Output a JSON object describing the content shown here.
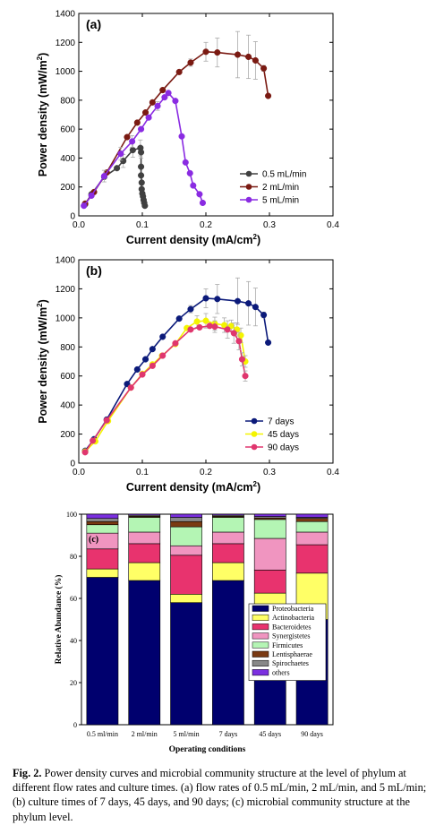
{
  "chart_data": [
    {
      "type": "line",
      "panel_label": "(a)",
      "title": "",
      "xlabel": "Current density (mA/cm",
      "xlabel_sup": "2",
      "xlabel_end": ")",
      "ylabel": "Power density (mW/m",
      "ylabel_sup": "2",
      "ylabel_end": ")",
      "xlim": [
        0,
        0.4
      ],
      "ylim": [
        0,
        1400
      ],
      "xticks": [
        "0.0",
        "0.1",
        "0.2",
        "0.3",
        "0.4"
      ],
      "yticks": [
        "0",
        "200",
        "400",
        "600",
        "800",
        "1000",
        "1200",
        "1400"
      ],
      "legend_position": "bottom-right",
      "series": [
        {
          "name": "0.5 mL/min",
          "color": "#404040",
          "points": [
            [
              0.01,
              80
            ],
            [
              0.02,
              150
            ],
            [
              0.04,
              270
            ],
            [
              0.06,
              330
            ],
            [
              0.07,
              380
            ],
            [
              0.085,
              455
            ],
            [
              0.097,
              470
            ],
            [
              0.098,
              440
            ],
            [
              0.098,
              340
            ],
            [
              0.098,
              280
            ],
            [
              0.099,
              230
            ],
            [
              0.099,
              185
            ],
            [
              0.1,
              155
            ],
            [
              0.101,
              135
            ],
            [
              0.102,
              110
            ],
            [
              0.103,
              90
            ],
            [
              0.104,
              70
            ]
          ],
          "errors": [
            0,
            0,
            0,
            0,
            45,
            50,
            55,
            40,
            0,
            0,
            0,
            0,
            0,
            0,
            0,
            0,
            0
          ]
        },
        {
          "name": "2 mL/min",
          "color": "#7a1a12",
          "points": [
            [
              0.01,
              85
            ],
            [
              0.024,
              165
            ],
            [
              0.044,
              300
            ],
            [
              0.076,
              545
            ],
            [
              0.092,
              645
            ],
            [
              0.105,
              715
            ],
            [
              0.116,
              785
            ],
            [
              0.132,
              870
            ],
            [
              0.158,
              995
            ],
            [
              0.176,
              1060
            ],
            [
              0.2,
              1135
            ],
            [
              0.218,
              1130
            ],
            [
              0.25,
              1115
            ],
            [
              0.267,
              1100
            ],
            [
              0.278,
              1075
            ],
            [
              0.291,
              1020
            ],
            [
              0.298,
              830
            ]
          ],
          "errors": [
            0,
            0,
            0,
            0,
            0,
            0,
            0,
            0,
            0,
            25,
            65,
            100,
            160,
            150,
            130,
            20,
            0
          ]
        },
        {
          "name": "5 mL/min",
          "color": "#8a2be2",
          "points": [
            [
              0.008,
              70
            ],
            [
              0.02,
              140
            ],
            [
              0.04,
              275
            ],
            [
              0.066,
              430
            ],
            [
              0.084,
              515
            ],
            [
              0.098,
              600
            ],
            [
              0.11,
              680
            ],
            [
              0.124,
              760
            ],
            [
              0.135,
              820
            ],
            [
              0.141,
              850
            ],
            [
              0.152,
              795
            ],
            [
              0.162,
              550
            ],
            [
              0.168,
              370
            ],
            [
              0.175,
              295
            ],
            [
              0.18,
              210
            ],
            [
              0.19,
              150
            ],
            [
              0.195,
              90
            ]
          ],
          "errors": [
            0,
            0,
            40,
            45,
            40,
            0,
            0,
            30,
            0,
            0,
            0,
            0,
            0,
            0,
            0,
            0,
            0
          ]
        }
      ]
    },
    {
      "type": "line",
      "panel_label": "(b)",
      "title": "",
      "xlabel": "Current density (mA/cm",
      "xlabel_sup": "2",
      "xlabel_end": ")",
      "ylabel": "Power density (mW/m",
      "ylabel_sup": "2",
      "ylabel_end": ")",
      "xlim": [
        0,
        0.4
      ],
      "ylim": [
        0,
        1400
      ],
      "xticks": [
        "0.0",
        "0.1",
        "0.2",
        "0.3",
        "0.4"
      ],
      "yticks": [
        "0",
        "200",
        "400",
        "600",
        "800",
        "1000",
        "1200",
        "1400"
      ],
      "legend_position": "bottom-right",
      "series": [
        {
          "name": "7 days",
          "color": "#0b1a7a",
          "points": [
            [
              0.01,
              85
            ],
            [
              0.024,
              165
            ],
            [
              0.044,
              300
            ],
            [
              0.076,
              545
            ],
            [
              0.092,
              645
            ],
            [
              0.105,
              715
            ],
            [
              0.116,
              785
            ],
            [
              0.132,
              870
            ],
            [
              0.158,
              995
            ],
            [
              0.176,
              1060
            ],
            [
              0.2,
              1135
            ],
            [
              0.218,
              1130
            ],
            [
              0.25,
              1115
            ],
            [
              0.267,
              1100
            ],
            [
              0.278,
              1075
            ],
            [
              0.291,
              1020
            ],
            [
              0.298,
              830
            ]
          ],
          "errors": [
            0,
            0,
            0,
            0,
            0,
            0,
            0,
            0,
            0,
            25,
            65,
            100,
            160,
            150,
            130,
            20,
            0
          ]
        },
        {
          "name": "45 days",
          "color": "#f4f400",
          "points": [
            [
              0.01,
              80
            ],
            [
              0.026,
              150
            ],
            [
              0.046,
              290
            ],
            [
              0.082,
              520
            ],
            [
              0.1,
              615
            ],
            [
              0.116,
              680
            ],
            [
              0.131,
              740
            ],
            [
              0.152,
              820
            ],
            [
              0.17,
              930
            ],
            [
              0.186,
              975
            ],
            [
              0.2,
              980
            ],
            [
              0.214,
              960
            ],
            [
              0.229,
              950
            ],
            [
              0.24,
              945
            ],
            [
              0.249,
              920
            ],
            [
              0.255,
              880
            ],
            [
              0.262,
              700
            ]
          ],
          "errors": [
            0,
            0,
            0,
            0,
            0,
            0,
            0,
            0,
            0,
            40,
            50,
            45,
            50,
            40,
            45,
            50,
            40
          ]
        },
        {
          "name": "90 days",
          "color": "#e0366e",
          "points": [
            [
              0.01,
              75
            ],
            [
              0.022,
              155
            ],
            [
              0.044,
              295
            ],
            [
              0.082,
              520
            ],
            [
              0.1,
              610
            ],
            [
              0.116,
              670
            ],
            [
              0.132,
              740
            ],
            [
              0.152,
              825
            ],
            [
              0.176,
              920
            ],
            [
              0.19,
              935
            ],
            [
              0.206,
              945
            ],
            [
              0.214,
              940
            ],
            [
              0.234,
              920
            ],
            [
              0.244,
              895
            ],
            [
              0.252,
              840
            ],
            [
              0.257,
              715
            ],
            [
              0.262,
              600
            ]
          ],
          "errors": [
            0,
            0,
            0,
            0,
            0,
            0,
            0,
            0,
            0,
            0,
            0,
            40,
            60,
            70,
            60,
            45,
            35
          ]
        }
      ]
    },
    {
      "type": "bar",
      "stacked": true,
      "panel_label": "(c)",
      "title": "",
      "xlabel": "Operating conditions",
      "ylabel": "Relative Abundance (%)",
      "ylim": [
        0,
        100
      ],
      "yticks": [
        "0",
        "20",
        "40",
        "60",
        "80",
        "100"
      ],
      "categories": [
        "0.5 ml/min",
        "2 ml/min",
        "5 ml/min",
        "7 days",
        "45 days",
        "90 days"
      ],
      "legend_position": "right",
      "series": [
        {
          "name": "Proteobacteria",
          "color": "#00006e",
          "values": [
            70,
            68.5,
            58,
            68.5,
            50.5,
            50
          ]
        },
        {
          "name": "Actinobacteria",
          "color": "#ffff66",
          "values": [
            4,
            8.5,
            4,
            8.5,
            12,
            22
          ]
        },
        {
          "name": "Bacteroidetes",
          "color": "#e8336e",
          "values": [
            9.5,
            9,
            18.5,
            9,
            11,
            13.5
          ]
        },
        {
          "name": "Synergistetes",
          "color": "#f095c0",
          "values": [
            7.5,
            5.5,
            4.5,
            5.5,
            15,
            6
          ]
        },
        {
          "name": "Firmicutes",
          "color": "#b4f5b4",
          "values": [
            4,
            7,
            9,
            7,
            9,
            5
          ]
        },
        {
          "name": "Lentisphaerae",
          "color": "#7a3a12",
          "values": [
            1.5,
            0.5,
            2.5,
            0.5,
            0.7,
            1.5
          ]
        },
        {
          "name": "Spirochaetes",
          "color": "#888888",
          "values": [
            1.5,
            0.5,
            2,
            0.5,
            0.7,
            0.5
          ]
        },
        {
          "name": "others",
          "color": "#7b2fe0",
          "values": [
            2,
            0.5,
            1.5,
            0.5,
            1.1,
            1.5
          ]
        }
      ]
    }
  ],
  "caption": {
    "label": "Fig. 2.",
    "text": " Power density curves and microbial community structure at the level of phylum at different flow rates and culture times. (a) flow rates of 0.5 mL/min, 2 mL/min, and 5 mL/min; (b) culture times of 7 days, 45 days, and 90 days; (c) microbial community structure at the phylum level."
  }
}
